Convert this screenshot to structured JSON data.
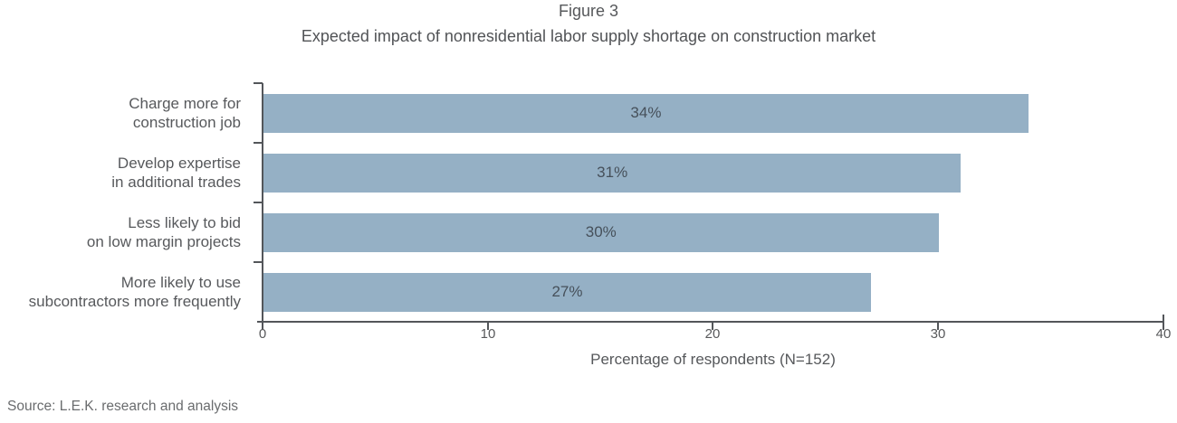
{
  "title": {
    "figure_label": "Figure 3",
    "text": "Expected impact of nonresidential labor supply shortage on construction market"
  },
  "chart_data": {
    "type": "bar",
    "orientation": "horizontal",
    "title": "Figure 3",
    "subtitle": "Expected impact of nonresidential labor supply shortage on construction market",
    "categories": [
      "Charge more for\nconstruction job",
      "Develop expertise\nin additional trades",
      "Less likely to bid\non low margin projects",
      "More likely to use\nsubcontractors more frequently"
    ],
    "values": [
      34,
      31,
      30,
      27
    ],
    "value_labels": [
      "34%",
      "31%",
      "30%",
      "27%"
    ],
    "xlabel": "Percentage of respondents (N=152)",
    "ylabel": "",
    "xlim": [
      0,
      40
    ],
    "x_ticks": [
      "0",
      "10",
      "20",
      "30",
      "40"
    ],
    "grid": false,
    "legend": false,
    "bar_color": "#95B0C5",
    "axis_color": "#53565A",
    "value_label_color": "#46505A"
  },
  "source": "Source: L.E.K. research and analysis"
}
